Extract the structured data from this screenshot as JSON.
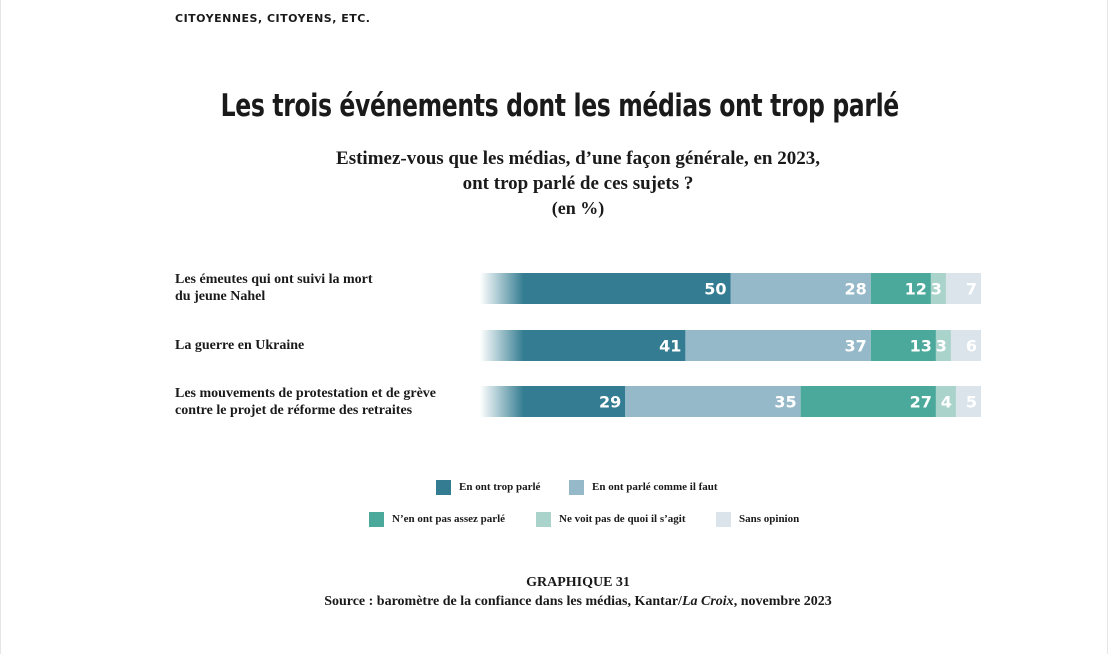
{
  "header": {
    "section": "CITOYENNES, CITOYENS, ETC."
  },
  "chart_data": {
    "type": "bar",
    "orientation": "horizontal",
    "stacked": true,
    "title": "Les trois événements dont les médias ont trop parlé",
    "subtitle_lines": [
      "Estimez-vous que les médias, d’une façon générale, en 2023,",
      "ont trop parlé de ces sujets ?"
    ],
    "unit": "(en %)",
    "categories": [
      [
        "Les émeutes qui ont suivi la mort",
        "du jeune Nahel"
      ],
      [
        "La guerre en Ukraine"
      ],
      [
        "Les mouvements de protestation et de grève",
        "contre le projet de réforme des retraites"
      ]
    ],
    "series": [
      {
        "name": "En ont trop parlé",
        "color": "#337c91",
        "values": [
          50,
          41,
          29
        ]
      },
      {
        "name": "En ont parlé comme il faut",
        "color": "#96b9c9",
        "values": [
          28,
          37,
          35
        ]
      },
      {
        "name": "N’en ont pas assez parlé",
        "color": "#4aa99a",
        "values": [
          12,
          13,
          27
        ]
      },
      {
        "name": "Ne voit pas de quoi il s’agit",
        "color": "#a9d3cb",
        "values": [
          3,
          3,
          4
        ]
      },
      {
        "name": "Sans opinion",
        "color": "#dbe4eb",
        "values": [
          7,
          6,
          5
        ]
      }
    ],
    "xlim": [
      0,
      100
    ],
    "legend_position": "bottom",
    "grid": false
  },
  "source": {
    "label": "GRAPHIQUE 31",
    "text_before": "Source : baromètre de la confiance dans les médias, Kantar/",
    "text_italic": "La Croix",
    "text_after": ", novembre 2023"
  }
}
